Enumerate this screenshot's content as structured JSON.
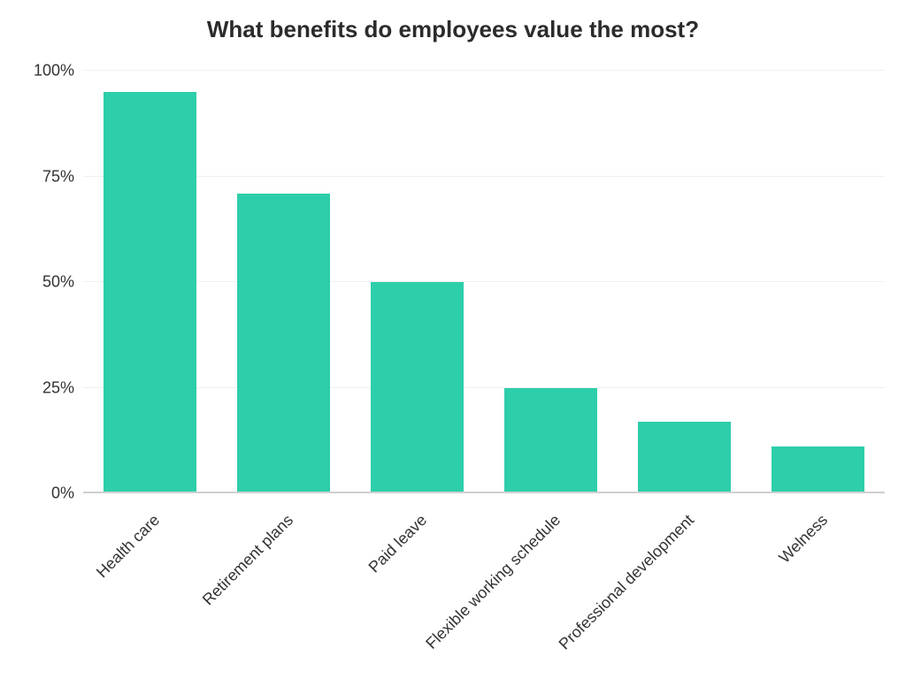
{
  "chart": {
    "type": "bar",
    "title": "What benefits do employees value the most?",
    "title_fontsize": 26,
    "title_color": "#2b2b2b",
    "categories": [
      "Health care",
      "Retirement plans",
      "Paid leave",
      "Flexible working schedule",
      "Professional development",
      "Welness"
    ],
    "values": [
      95,
      71,
      50,
      25,
      17,
      11
    ],
    "bar_color": "#2dceaa",
    "bar_width": 0.7,
    "ylim": [
      0,
      100
    ],
    "ytick_step": 25,
    "ytick_labels": [
      "0%",
      "25%",
      "50%",
      "75%",
      "100%"
    ],
    "ytick_fontsize": 18,
    "xlabel_fontsize": 18,
    "xlabel_rotation": -45,
    "background_color": "#ffffff",
    "grid_color": "#f0f0f0",
    "baseline_color": "#d0d0d0",
    "text_color": "#333333"
  }
}
